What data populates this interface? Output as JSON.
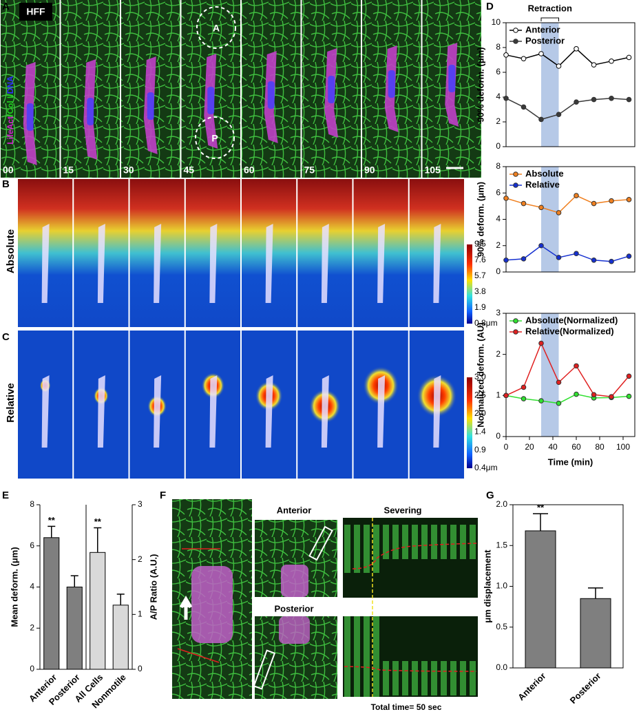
{
  "figure": {
    "panel_labels": [
      "A",
      "B",
      "C",
      "D",
      "E",
      "F",
      "G"
    ],
    "cell_line": "HFF",
    "stain": [
      "LifeAct",
      "/Col I/",
      "DNA"
    ],
    "times": [
      "00",
      "15",
      "30",
      "45",
      "60",
      "75",
      "90",
      "105"
    ],
    "region_labels": [
      "A",
      "P"
    ],
    "row_labels": [
      "Absolute",
      "Relative"
    ],
    "colorbars": [
      [
        "9.5",
        "7.6",
        "5.7",
        "3.8",
        "1.9",
        "0.8μm"
      ],
      [
        "3.0",
        "2.5",
        "2.0",
        "1.4",
        "0.9",
        "0.4μm"
      ]
    ],
    "f_labels": {
      "anterior": "Anterior",
      "posterior": "Posterior",
      "severing": "Severing",
      "total_time": "Total time= 50 sec"
    }
  },
  "chart_data": [
    {
      "type": "line",
      "annotation": "Retraction",
      "shade": [
        30,
        45
      ],
      "x": [
        0,
        15,
        30,
        45,
        60,
        75,
        90,
        105
      ],
      "xlim": [
        0,
        110
      ],
      "ylim": [
        0,
        10
      ],
      "yticks": [
        0,
        2,
        4,
        6,
        8,
        10
      ],
      "ylabel": "90% deform. (μm)",
      "legend": "top-left",
      "series": [
        {
          "name": "Anterior",
          "color": "#000000",
          "marker": "open",
          "values": [
            7.4,
            7.1,
            7.5,
            6.5,
            7.9,
            6.6,
            6.9,
            7.2
          ]
        },
        {
          "name": "Posterior",
          "color": "#3a3a3a",
          "marker": "filled",
          "values": [
            3.9,
            3.2,
            2.2,
            2.6,
            3.6,
            3.8,
            3.9,
            3.8
          ]
        }
      ]
    },
    {
      "type": "line",
      "shade": [
        30,
        45
      ],
      "x": [
        0,
        15,
        30,
        45,
        60,
        75,
        90,
        105
      ],
      "xlim": [
        0,
        110
      ],
      "ylim": [
        0,
        8
      ],
      "yticks": [
        0,
        2,
        4,
        6,
        8
      ],
      "ylabel": "90% deform. (μm)",
      "legend": "top-left",
      "series": [
        {
          "name": "Absolute",
          "color": "#f08020",
          "marker": "filled",
          "values": [
            5.6,
            5.2,
            4.9,
            4.5,
            5.8,
            5.2,
            5.4,
            5.5
          ]
        },
        {
          "name": "Relative",
          "color": "#1530d0",
          "marker": "filled",
          "values": [
            0.9,
            1.0,
            2.0,
            1.1,
            1.4,
            0.9,
            0.8,
            1.2
          ]
        }
      ]
    },
    {
      "type": "line",
      "shade": [
        30,
        45
      ],
      "x": [
        0,
        15,
        30,
        45,
        60,
        75,
        90,
        105
      ],
      "xlim": [
        0,
        110
      ],
      "xticks": [
        0,
        20,
        40,
        60,
        80,
        100
      ],
      "xlabel": "Time (min)",
      "ylim": [
        0,
        3
      ],
      "yticks": [
        0,
        1,
        2,
        3
      ],
      "ylabel": "Normalized deform. (AU)",
      "legend": "top-left",
      "series": [
        {
          "name": "Absolute(Normalized)",
          "color": "#30e030",
          "marker": "filled",
          "values": [
            1.0,
            0.92,
            0.87,
            0.81,
            1.03,
            0.94,
            0.95,
            0.98
          ]
        },
        {
          "name": "Relative(Normalized)",
          "color": "#e02020",
          "marker": "filled",
          "values": [
            1.0,
            1.2,
            2.27,
            1.32,
            1.72,
            1.02,
            0.97,
            1.47
          ]
        }
      ]
    },
    {
      "type": "bar",
      "categories": [
        "Anterior",
        "Posterior",
        "All Cells",
        "Nonmotile"
      ],
      "ylim": [
        0,
        8
      ],
      "yticks": [
        0,
        2,
        4,
        6,
        8
      ],
      "ylabel": "Mean deform. (μm)",
      "y2lim": [
        0,
        3
      ],
      "y2ticks": [
        0,
        1,
        2,
        3
      ],
      "y2label": "A/P Ratio (A.U.)",
      "significance": [
        "**",
        null,
        "**",
        null
      ],
      "series": [
        {
          "color": "#7f7f7f",
          "values": [
            6.4,
            4.0,
            null,
            null
          ],
          "errors": [
            0.55,
            0.55,
            null,
            null
          ]
        },
        {
          "axis": "y2",
          "color": "#d9d9d9",
          "values": [
            null,
            null,
            2.13,
            1.17
          ],
          "errors": [
            null,
            null,
            0.45,
            0.2
          ]
        }
      ]
    },
    {
      "type": "bar",
      "categories": [
        "Anterior",
        "Posterior"
      ],
      "ylim": [
        0,
        2
      ],
      "yticks": [
        {
          "value": 0,
          "label": "0.0"
        },
        {
          "value": 0.5,
          "label": "0.5"
        },
        {
          "value": 1,
          "label": "1.0"
        },
        {
          "value": 1.5,
          "label": "1.5"
        },
        {
          "value": 2,
          "label": "2.0"
        }
      ],
      "ylabel": "μm displacement",
      "significance": [
        "**",
        null
      ],
      "series": [
        {
          "color": "#7f7f7f",
          "values": [
            1.68,
            0.85
          ],
          "errors": [
            0.21,
            0.13
          ]
        }
      ]
    }
  ]
}
